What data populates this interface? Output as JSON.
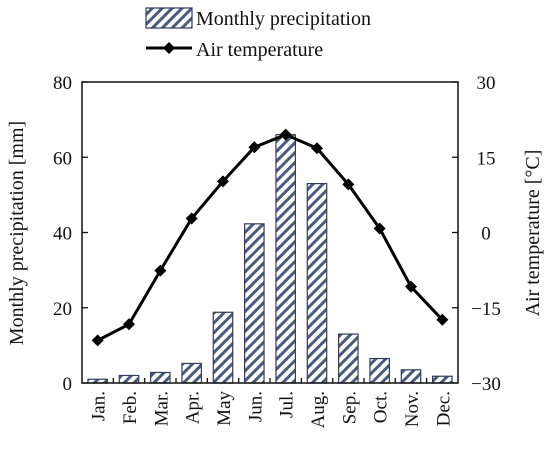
{
  "chart_data": {
    "type": "bar+line",
    "categories": [
      "Jan.",
      "Feb.",
      "Mar.",
      "Apr.",
      "May",
      "Jun.",
      "Jul.",
      "Aug.",
      "Sep.",
      "Oct.",
      "Nov.",
      "Dec."
    ],
    "series": [
      {
        "name": "Monthly precipitation",
        "type": "bar",
        "axis": "left",
        "values": [
          1,
          2,
          2.8,
          5.2,
          18.8,
          42.3,
          66,
          53,
          13,
          6.5,
          3.5,
          1.8
        ]
      },
      {
        "name": "Air temperature",
        "type": "line",
        "axis": "right",
        "values": [
          -21.5,
          -18.3,
          -7.6,
          2.8,
          10.2,
          17.0,
          19.5,
          16.8,
          9.6,
          0.8,
          -10.8,
          -17.4
        ]
      }
    ],
    "y_left": {
      "label": "Monthly precipitation [mm]",
      "range": [
        0,
        80
      ],
      "ticks": [
        0,
        20,
        40,
        60,
        80
      ]
    },
    "y_right": {
      "label": "Air temperature [°C]",
      "range": [
        -30,
        30
      ],
      "ticks": [
        -30,
        -15,
        0,
        15,
        30
      ],
      "tick_labels": [
        "−30",
        "−15",
        "0",
        "15",
        "30"
      ]
    },
    "legend": {
      "placement": "top"
    },
    "grid": false,
    "colors": {
      "bar_hatch": "#2e3e5c",
      "bar_fill": "#ffffff",
      "line": "#000000"
    }
  }
}
